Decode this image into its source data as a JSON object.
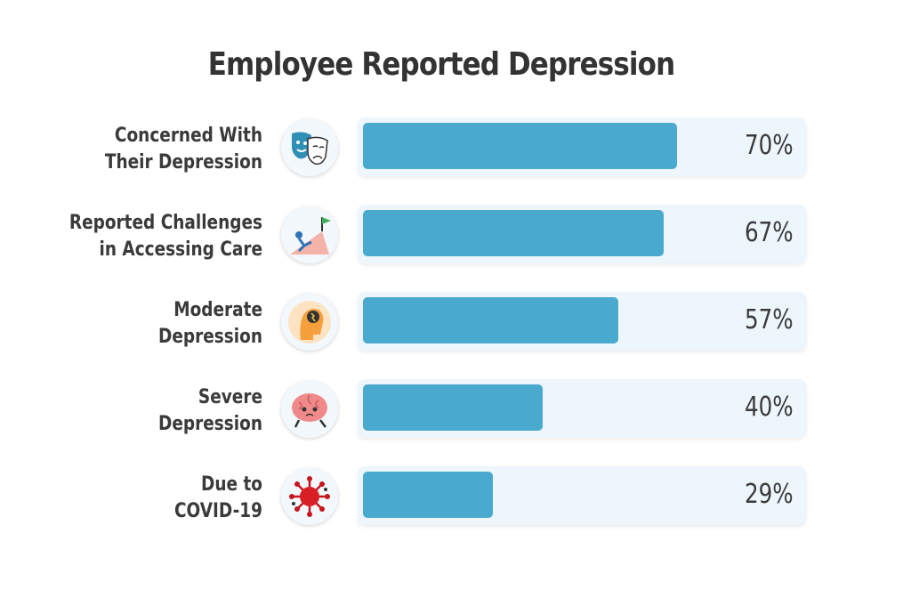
{
  "title": "Employee Reported Depression",
  "colors": {
    "bar": "#4aa9cf",
    "track": "#eef6fd",
    "text": "#3a3a3a"
  },
  "chart_data": {
    "type": "bar",
    "orientation": "horizontal",
    "title": "Employee Reported Depression",
    "xlabel": "",
    "ylabel": "",
    "xlim": [
      0,
      100
    ],
    "grid": false,
    "categories": [
      "Concerned With Their Depression",
      "Reported Challenges in Accessing Care",
      "Moderate Depression",
      "Severe Depression",
      "Due to COVID-19"
    ],
    "values": [
      70,
      67,
      57,
      40,
      29
    ],
    "rows": [
      {
        "line1": "Concerned With",
        "line2": "Their Depression",
        "icon": "theater-masks-icon",
        "value": 70,
        "value_label": "70%"
      },
      {
        "line1": "Reported Challenges",
        "line2": "in Accessing Care",
        "icon": "climber-flag-icon",
        "value": 67,
        "value_label": "67%"
      },
      {
        "line1": "Moderate",
        "line2": "Depression",
        "icon": "head-thought-icon",
        "value": 57,
        "value_label": "57%"
      },
      {
        "line1": "Severe",
        "line2": "Depression",
        "icon": "tired-brain-icon",
        "value": 40,
        "value_label": "40%"
      },
      {
        "line1": "Due to",
        "line2": "COVID-19",
        "icon": "virus-icon",
        "value": 29,
        "value_label": "29%"
      }
    ]
  }
}
